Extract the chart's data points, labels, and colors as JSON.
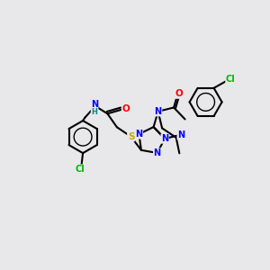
{
  "bg_color": "#e8e8ea",
  "atom_colors": {
    "C": "#000000",
    "N": "#0000ff",
    "O": "#ff0000",
    "S": "#ccaa00",
    "Cl": "#00bb00",
    "H": "#008888"
  },
  "bond_color": "#000000",
  "bond_width": 1.5,
  "figsize": [
    3.0,
    3.0
  ],
  "dpi": 100
}
